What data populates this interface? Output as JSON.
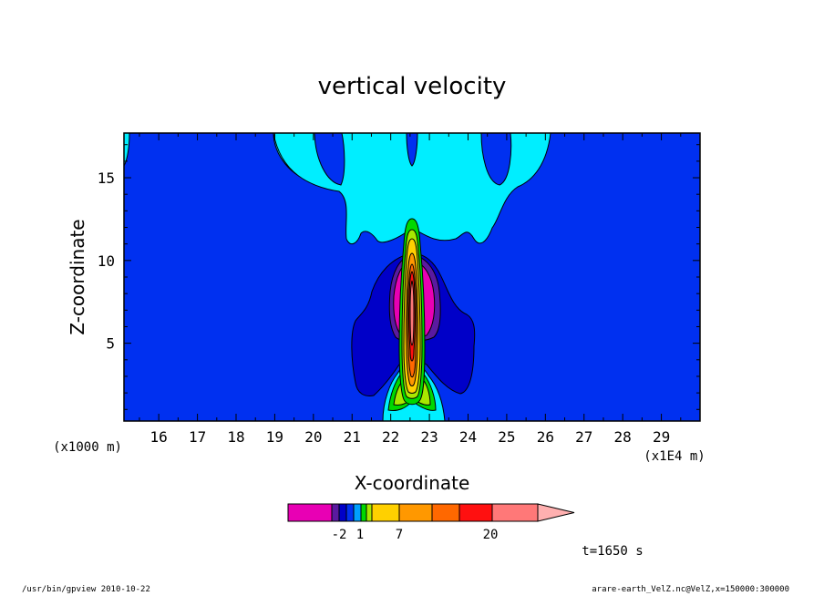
{
  "chart_data": {
    "type": "contour",
    "title": "vertical velocity",
    "xlabel": "X-coordinate",
    "ylabel": "Z-coordinate",
    "x_unit": "(x1E4 m)",
    "y_unit": "(x1000 m)",
    "xlim": [
      15.1,
      30.0
    ],
    "ylim": [
      0.3,
      17.7
    ],
    "x_ticks": [
      "16",
      "17",
      "18",
      "19",
      "20",
      "21",
      "22",
      "23",
      "24",
      "25",
      "26",
      "27",
      "28",
      "29"
    ],
    "y_ticks": [
      "5",
      "10",
      "15"
    ],
    "grid": false,
    "time_label": "t=1650 s",
    "colorbar": {
      "labels": [
        "-2",
        "1",
        "7",
        "20"
      ],
      "colors": [
        "#e800b4",
        "#5a1aa0",
        "#0000c8",
        "#0030f0",
        "#00a0ff",
        "#00d800",
        "#a8e800",
        "#ffd000",
        "#ff9800",
        "#ff6800",
        "#ff1010",
        "#ff7878",
        "#ffb0b0"
      ]
    },
    "levels_note": "filled contours of vertical velocity"
  },
  "footer": {
    "left": "/usr/bin/gpview   2010-10-22",
    "right": "arare-earth_VelZ.nc@VelZ,x=150000:300000"
  }
}
